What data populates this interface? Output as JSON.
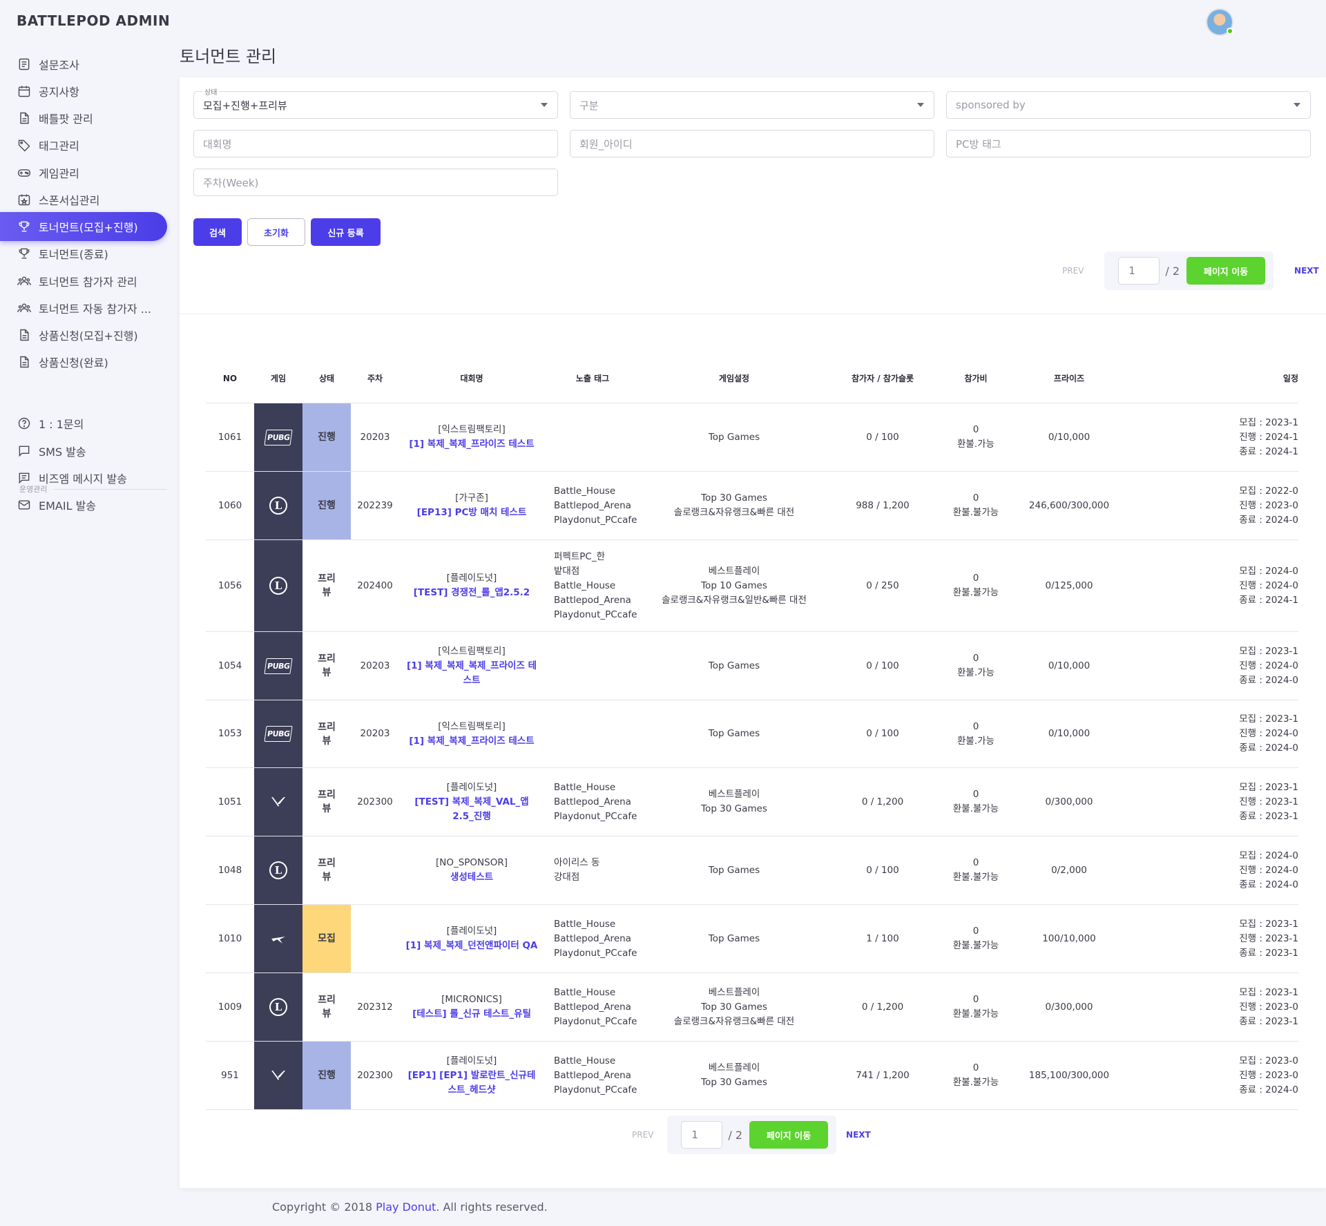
{
  "app": {
    "brand": "BATTLEPOD ADMIN",
    "brand_sub": "운영관리"
  },
  "page": {
    "title": "토너먼트 관리"
  },
  "sidebar": {
    "items": [
      {
        "label": "설문조사",
        "icon": "document-list-icon"
      },
      {
        "label": "공지사항",
        "icon": "calendar-icon"
      },
      {
        "label": "배틀팟 관리",
        "icon": "file-icon"
      },
      {
        "label": "태그관리",
        "icon": "tag-icon"
      },
      {
        "label": "게임관리",
        "icon": "gamepad-icon"
      },
      {
        "label": "스폰서십관리",
        "icon": "calendar-star-icon"
      },
      {
        "label": "토너먼트(모집+진행)",
        "icon": "trophy-icon"
      },
      {
        "label": "토너먼트(종료)",
        "icon": "trophy-icon"
      },
      {
        "label": "토너먼트 참가자 관리",
        "icon": "users-icon"
      },
      {
        "label": "토너먼트 자동 참가자 ...",
        "icon": "users-icon"
      },
      {
        "label": "상품신청(모집+진행)",
        "icon": "file-icon"
      },
      {
        "label": "상품신청(완료)",
        "icon": "file-icon"
      }
    ],
    "section_label": "운영관리",
    "ops_items": [
      {
        "label": "1 : 1문의",
        "icon": "question-circle-icon"
      },
      {
        "label": "SMS 발송",
        "icon": "message-square-icon"
      },
      {
        "label": "비즈엠 메시지 발송",
        "icon": "message-filled-icon"
      },
      {
        "label": "EMAIL 발송",
        "icon": "mail-icon"
      }
    ]
  },
  "filters": {
    "status": {
      "label": "상태",
      "value": "모집+진행+프리뷰"
    },
    "category": {
      "placeholder": "구분"
    },
    "sponsor": {
      "placeholder": "sponsored by"
    },
    "tournament_name": {
      "placeholder": "대회명"
    },
    "member_id": {
      "placeholder": "회원_아이디"
    },
    "pc_tag": {
      "placeholder": "PC방 태그"
    },
    "week": {
      "placeholder": "주차(Week)"
    }
  },
  "buttons": {
    "search": "검색",
    "reset": "초기화",
    "register": "신규 등록"
  },
  "pagination": {
    "prev": "PREV",
    "next": "NEXT",
    "current": "1",
    "total": "/ 2",
    "go": "페이지 이동"
  },
  "table": {
    "headers": [
      "NO",
      "게임",
      "상태",
      "주차",
      "대회명",
      "노출 태그",
      "게임설정",
      "참가자 / 참가슬롯",
      "참가비",
      "프라이즈",
      "일정"
    ],
    "rows": [
      {
        "no": "1061",
        "game": "PUBG",
        "status": "진행",
        "week": "20203",
        "sponsor": "[익스트림팩토리]",
        "title": "[1] 복제_복제_프라이즈 테스트",
        "tags": [],
        "settings": [
          "Top Games"
        ],
        "slots": "0 / 100",
        "fee": "0",
        "refund": "환불.가능",
        "prize": "0/10,000",
        "schedule": [
          "모집 : 2023-1",
          "진행 : 2024-1",
          "종료 : 2024-1"
        ]
      },
      {
        "no": "1060",
        "game": "LOL",
        "status": "진행",
        "week": "202239",
        "sponsor": "[가구존]",
        "title": "[EP13] PC방 매치 테스트",
        "tags": [
          "Battle_House",
          "Battlepod_Arena",
          "Playdonut_PCcafe"
        ],
        "settings": [
          "Top 30 Games",
          "솔로랭크&자유랭크&빠른 대전"
        ],
        "slots": "988 / 1,200",
        "fee": "0",
        "refund": "환불.불가능",
        "prize": "246,600/300,000",
        "schedule": [
          "모집 : 2022-0",
          "진행 : 2023-0",
          "종료 : 2024-0"
        ]
      },
      {
        "no": "1056",
        "game": "LOL",
        "status": "프리뷰",
        "week": "202400",
        "sponsor": "[플레이도넛]",
        "title": "[TEST] 경쟁전_롤_앱2.5.2",
        "tags": [
          "퍼펙트PC_한",
          "밭대점",
          "Battle_House",
          "Battlepod_Arena",
          "Playdonut_PCcafe"
        ],
        "settings": [
          "베스트플레이",
          "Top 10 Games",
          "솔로랭크&자유랭크&일반&빠른 대전"
        ],
        "slots": "0 / 250",
        "fee": "0",
        "refund": "환불.불가능",
        "prize": "0/125,000",
        "schedule": [
          "모집 : 2024-0",
          "진행 : 2024-0",
          "종료 : 2024-1"
        ]
      },
      {
        "no": "1054",
        "game": "PUBG",
        "status": "프리뷰",
        "week": "20203",
        "sponsor": "[익스트림팩토리]",
        "title": "[1] 복제_복제_복제_프라이즈 테스트",
        "tags": [],
        "settings": [
          "Top Games"
        ],
        "slots": "0 / 100",
        "fee": "0",
        "refund": "환불.가능",
        "prize": "0/10,000",
        "schedule": [
          "모집 : 2023-1",
          "진행 : 2024-0",
          "종료 : 2024-0"
        ]
      },
      {
        "no": "1053",
        "game": "PUBG",
        "status": "프리뷰",
        "week": "20203",
        "sponsor": "[익스트림팩토리]",
        "title": "[1] 복제_복제_프라이즈 테스트",
        "tags": [],
        "settings": [
          "Top Games"
        ],
        "slots": "0 / 100",
        "fee": "0",
        "refund": "환불.가능",
        "prize": "0/10,000",
        "schedule": [
          "모집 : 2023-1",
          "진행 : 2024-0",
          "종료 : 2024-0"
        ]
      },
      {
        "no": "1051",
        "game": "VALORANT",
        "status": "프리뷰",
        "week": "202300",
        "sponsor": "[플레이도넛]",
        "title": "[TEST] 복제_복제_VAL_앱2.5_진행",
        "tags": [
          "Battle_House",
          "Battlepod_Arena",
          "Playdonut_PCcafe"
        ],
        "settings": [
          "베스트플레이",
          "Top 30 Games"
        ],
        "slots": "0 / 1,200",
        "fee": "0",
        "refund": "환불.불가능",
        "prize": "0/300,000",
        "schedule": [
          "모집 : 2023-1",
          "진행 : 2023-1",
          "종료 : 2023-1"
        ]
      },
      {
        "no": "1048",
        "game": "LOL",
        "status": "프리뷰",
        "week": "",
        "sponsor": "[NO_SPONSOR]",
        "title": "생성테스트",
        "tags": [
          "아이리스 동",
          "강대점"
        ],
        "settings": [
          "Top Games"
        ],
        "slots": "0 / 100",
        "fee": "0",
        "refund": "환불.불가능",
        "prize": "0/2,000",
        "schedule": [
          "모집 : 2024-0",
          "진행 : 2024-0",
          "종료 : 2024-0"
        ]
      },
      {
        "no": "1010",
        "game": "ETERNAL",
        "status": "모집",
        "week": "",
        "sponsor": "[플레이도넛]",
        "title": "[1] 복제_복제_던전앤파이터 QA",
        "tags": [
          "Battle_House",
          "Battlepod_Arena",
          "Playdonut_PCcafe"
        ],
        "settings": [
          "Top Games"
        ],
        "slots": "1 / 100",
        "fee": "0",
        "refund": "환불.불가능",
        "prize": "100/10,000",
        "schedule": [
          "모집 : 2023-1",
          "진행 : 2023-1",
          "종료 : 2023-1"
        ]
      },
      {
        "no": "1009",
        "game": "LOL",
        "status": "프리뷰",
        "week": "202312",
        "sponsor": "[MICRONICS]",
        "title": "[테스트] 롤_신규 테스트_유틸",
        "tags": [
          "Battle_House",
          "Battlepod_Arena",
          "Playdonut_PCcafe"
        ],
        "settings": [
          "베스트플레이",
          "Top 30 Games",
          "솔로랭크&자유랭크&빠른 대전"
        ],
        "slots": "0 / 1,200",
        "fee": "0",
        "refund": "환불.불가능",
        "prize": "0/300,000",
        "schedule": [
          "모집 : 2023-1",
          "진행 : 2023-0",
          "종료 : 2023-1"
        ]
      },
      {
        "no": "951",
        "game": "VALORANT",
        "status": "진행",
        "week": "202300",
        "sponsor": "[플레이도넛]",
        "title": "[EP1] [EP1] 발로란트_신규테스트_헤드샷",
        "tags": [
          "Battle_House",
          "Battlepod_Arena",
          "Playdonut_PCcafe"
        ],
        "settings": [
          "베스트플레이",
          "Top 30 Games"
        ],
        "slots": "741 / 1,200",
        "fee": "0",
        "refund": "환불.불가능",
        "prize": "185,100/300,000",
        "schedule": [
          "모집 : 2023-0",
          "진행 : 2023-0",
          "종료 : 2024-0"
        ]
      }
    ]
  },
  "colors": {
    "accent": "#4b3de8",
    "status_progress": "#a9b4e6",
    "status_recruit": "#fdd77a",
    "game_cell": "#3c3d56",
    "go_button": "#5cd32e"
  },
  "footer": {
    "prefix": "Copyright © 2018 ",
    "link": "Play Donut",
    "suffix": ". All rights reserved."
  }
}
